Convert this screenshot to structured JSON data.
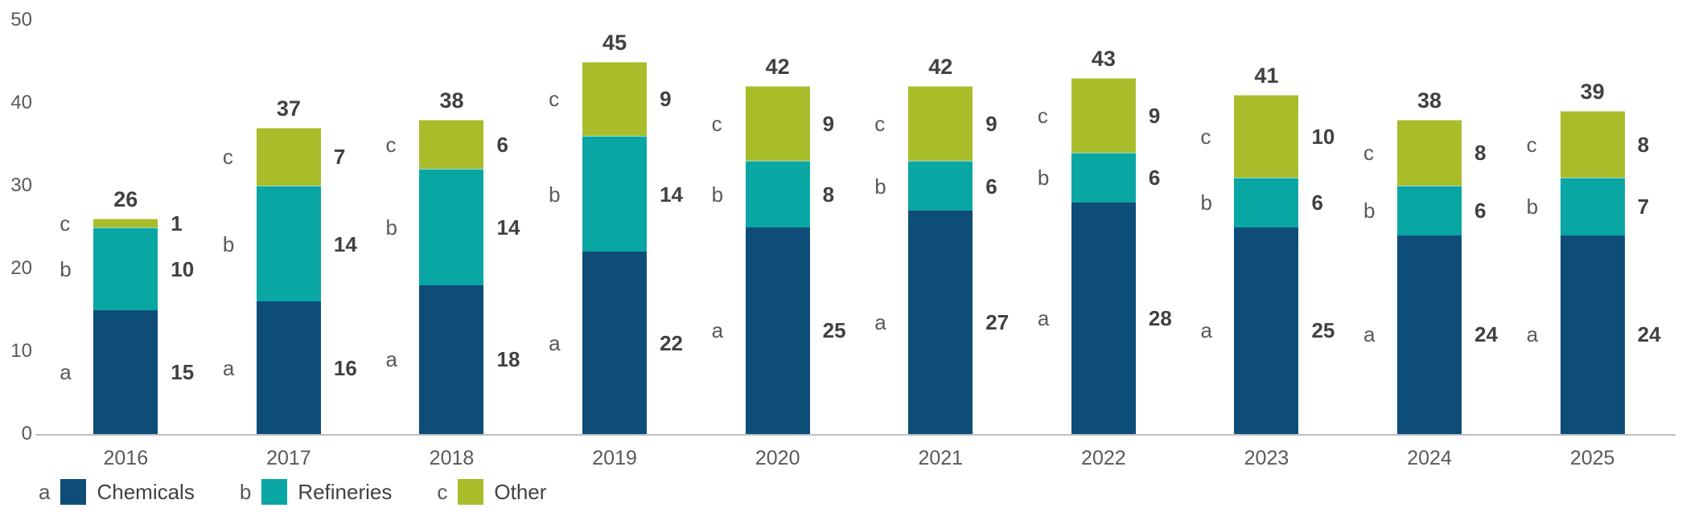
{
  "chart_data": {
    "type": "bar",
    "stacked": true,
    "title": "",
    "xlabel": "",
    "ylabel": "",
    "categories": [
      "2016",
      "2017",
      "2018",
      "2019",
      "2020",
      "2021",
      "2022",
      "2023",
      "2024",
      "2025"
    ],
    "series": [
      {
        "key": "a",
        "name": "Chemicals",
        "color": "#0e4d78",
        "values": [
          15,
          16,
          18,
          22,
          25,
          27,
          28,
          25,
          24,
          24
        ]
      },
      {
        "key": "b",
        "name": "Refineries",
        "color": "#0aa6a4",
        "values": [
          10,
          14,
          14,
          14,
          8,
          6,
          6,
          6,
          6,
          7
        ]
      },
      {
        "key": "c",
        "name": "Other",
        "color": "#a9bd2b",
        "values": [
          1,
          7,
          6,
          9,
          9,
          9,
          9,
          10,
          8,
          8
        ]
      }
    ],
    "totals": [
      26,
      37,
      38,
      45,
      42,
      42,
      43,
      41,
      38,
      39
    ],
    "y_ticks": [
      0,
      10,
      20,
      30,
      40,
      50
    ],
    "ylim": [
      0,
      50
    ],
    "grid": false,
    "legend_position": "bottom-left"
  },
  "colors": {
    "tick_text": "#58595b",
    "value_text": "#414042",
    "axis_line": "#bcbec0"
  }
}
